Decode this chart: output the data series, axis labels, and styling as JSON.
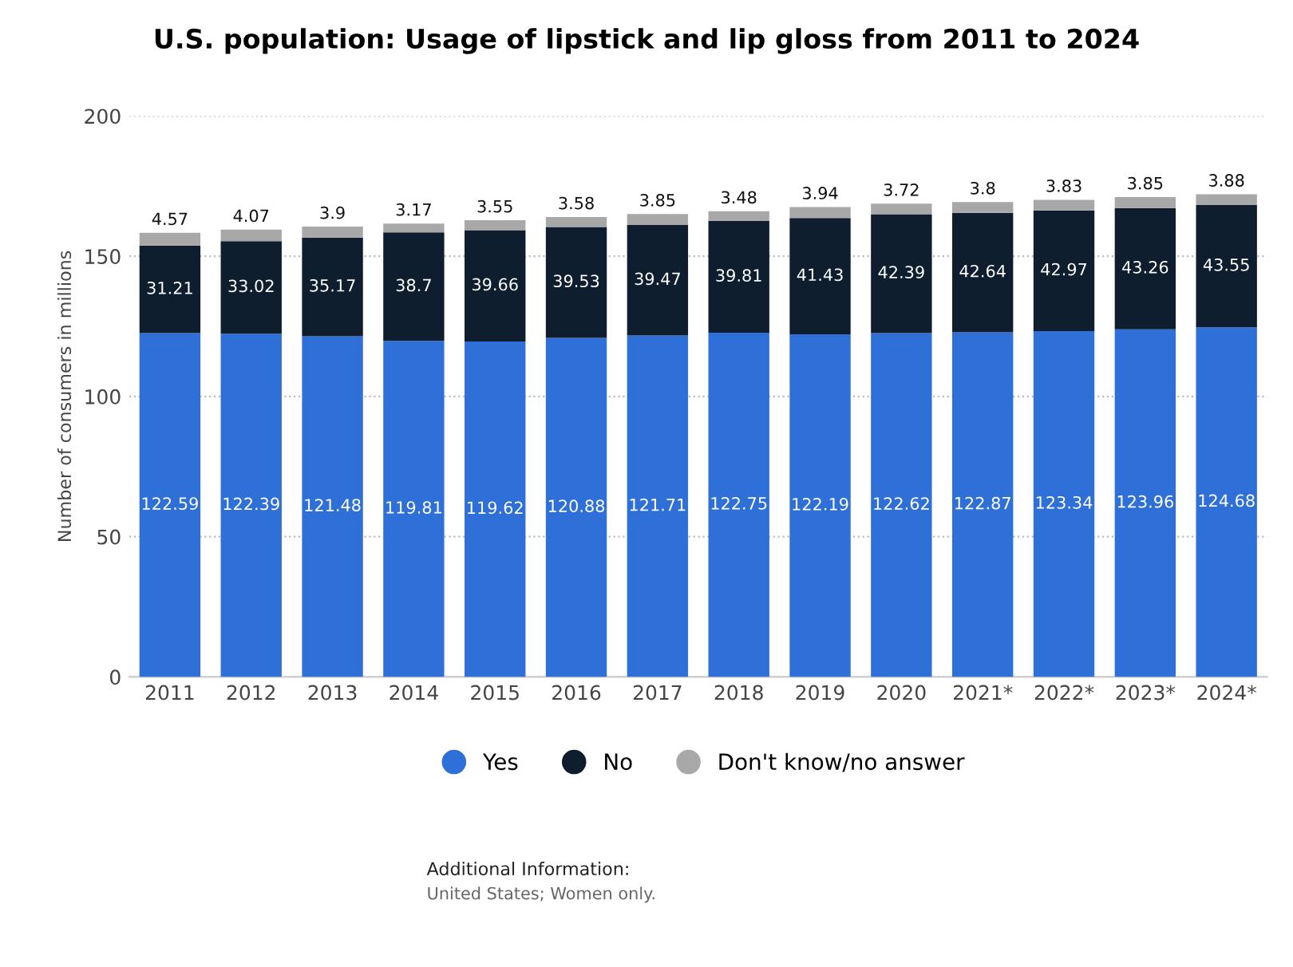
{
  "chart_data": {
    "type": "bar",
    "stacked": true,
    "title": "U.S. population: Usage of lipstick and lip gloss from 2011 to 2024",
    "ylabel": "Number of consumers in millions",
    "categories": [
      "2011",
      "2012",
      "2013",
      "2014",
      "2015",
      "2016",
      "2017",
      "2018",
      "2019",
      "2020",
      "2021*",
      "2022*",
      "2023*",
      "2024*"
    ],
    "series": [
      {
        "name": "Yes",
        "color": "#2f6fd8",
        "values": [
          122.59,
          122.39,
          121.48,
          119.81,
          119.62,
          120.88,
          121.71,
          122.75,
          122.19,
          122.62,
          122.87,
          123.34,
          123.96,
          124.68
        ]
      },
      {
        "name": "No",
        "color": "#0e1e2e",
        "values": [
          31.21,
          33.02,
          35.17,
          38.7,
          39.66,
          39.53,
          39.47,
          39.81,
          41.43,
          42.39,
          42.64,
          42.97,
          43.26,
          43.55
        ]
      },
      {
        "name": "Don't know/no answer",
        "color": "#a8a8a8",
        "values": [
          4.57,
          4.07,
          3.9,
          3.17,
          3.55,
          3.58,
          3.85,
          3.48,
          3.94,
          3.72,
          3.8,
          3.83,
          3.85,
          3.88
        ]
      }
    ],
    "ylim": [
      0,
      200
    ],
    "yticks": [
      0,
      50,
      100,
      150,
      200
    ],
    "grid": "y",
    "legend": "bottom",
    "data_labels": true,
    "annotations": [
      "Additional Information:",
      "United States; Women only."
    ]
  }
}
